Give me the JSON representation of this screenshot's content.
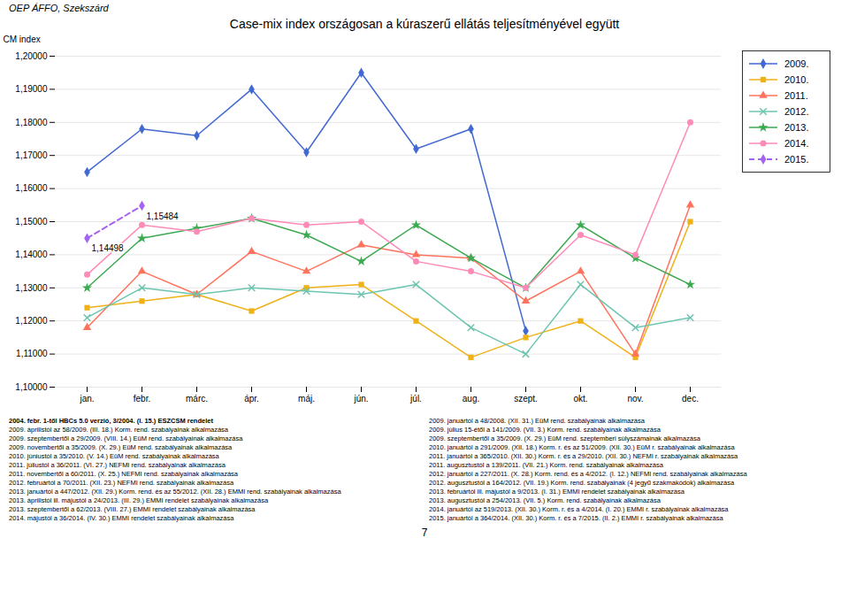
{
  "chart_data": {
    "type": "line",
    "title": "Case-mix index országosan a kúraszerű ellátás teljesítményével együtt",
    "header": "OEP ÁFFO, Szekszárd",
    "y_label": "CM index",
    "categories": [
      "jan.",
      "febr.",
      "márc.",
      "ápr.",
      "máj.",
      "jún.",
      "júl.",
      "aug.",
      "szept.",
      "okt.",
      "nov.",
      "dec."
    ],
    "series": [
      {
        "name": "2009.",
        "marker": "diamond",
        "line_style": "solid",
        "values": [
          1.165,
          1.178,
          1.176,
          1.19,
          1.171,
          1.195,
          1.172,
          1.178,
          1.117,
          null,
          null,
          null
        ]
      },
      {
        "name": "2010.",
        "marker": "square",
        "line_style": "solid",
        "values": [
          1.124,
          1.126,
          1.128,
          1.123,
          1.13,
          1.131,
          1.12,
          1.109,
          1.115,
          1.12,
          1.109,
          1.15
        ]
      },
      {
        "name": "2011.",
        "marker": "triangle",
        "line_style": "solid",
        "values": [
          1.118,
          1.135,
          1.128,
          1.141,
          1.135,
          1.143,
          1.14,
          1.139,
          1.126,
          1.135,
          1.11,
          1.155
        ]
      },
      {
        "name": "2012.",
        "marker": "x",
        "line_style": "solid",
        "values": [
          1.121,
          1.13,
          1.128,
          1.13,
          1.129,
          1.128,
          1.131,
          1.118,
          1.11,
          1.131,
          1.118,
          1.121
        ]
      },
      {
        "name": "2013.",
        "marker": "star",
        "line_style": "solid",
        "values": [
          1.13,
          1.145,
          1.148,
          1.151,
          1.146,
          1.138,
          1.149,
          1.139,
          1.13,
          1.149,
          1.139,
          1.131
        ]
      },
      {
        "name": "2014.",
        "marker": "circle",
        "line_style": "solid",
        "values": [
          1.134,
          1.149,
          1.147,
          1.151,
          1.149,
          1.15,
          1.138,
          1.135,
          1.13,
          1.146,
          1.14,
          1.18
        ]
      },
      {
        "name": "2015.",
        "marker": "diamond",
        "line_style": "dashed",
        "values": [
          1.145,
          1.1548,
          null,
          null,
          null,
          null,
          null,
          null,
          null,
          null,
          null,
          null
        ]
      }
    ],
    "ylim": [
      1.1,
      1.2
    ],
    "yticks": [
      {
        "value": 1.1,
        "label": "1,10000"
      },
      {
        "value": 1.11,
        "label": "1,11000"
      },
      {
        "value": 1.12,
        "label": "1,12000"
      },
      {
        "value": 1.13,
        "label": "1,13000"
      },
      {
        "value": 1.14,
        "label": "1,14000"
      },
      {
        "value": 1.15,
        "label": "1,15000"
      },
      {
        "value": 1.16,
        "label": "1,16000"
      },
      {
        "value": 1.17,
        "label": "1,17000"
      },
      {
        "value": 1.18,
        "label": "1,18000"
      },
      {
        "value": 1.19,
        "label": "1,19000"
      },
      {
        "value": 1.2,
        "label": "1,20000"
      }
    ],
    "grid": true,
    "legend": "right",
    "annotations": [
      {
        "text": "1,15484",
        "x": "febr.",
        "series": "2015."
      },
      {
        "text": "1,14498",
        "x": "jan.",
        "series": "2015."
      }
    ],
    "footnotes_left": [
      "2004. febr. 1-től HBCs 5.0 verzió, 3/2004. (I. 15.) ESZCSM rendelet",
      "2009. áprilistól az 58/2009. (III. 18.) Korm. rend. szabályainak alkalmazása",
      "2009. szeptembertől a 29/2009. (VIII. 14.) EüM rend. szabályainak alkalmazása",
      "2009. novembertől a 35/2009. (X. 29.) EüM rend. szabályainak alkalmazása",
      "2010. júniustól a 35/2010. (V. 14.) EüM rend. szabályainak alkalmazása",
      "2011. júliustól a 36/2011. (VI. 27.) NEFMI rend. szabályainak alkalmazása",
      "2011. novembertől a 60/2011. (X. 25.) NEFMI rend. szabályainak alkalmazása",
      "2012. februártól a 70/2011. (XII. 23.) NEFMI rend. szabályainak alkalmazása",
      "2013. januártól a 447/2012. (XII. 29.) Korm. rend. és az 55/2012. (XII. 28.) EMMI rend. szabályainak alkalmazása",
      "2013. áprilistól ill. májustól a 24/2013. (III. 29.) EMMI rendelet szabályainak alkalmazása",
      "2013. szeptembertől a 62/2013. (VIII. 27.) EMMI rendelet szabályainak alkalmazása",
      "2014. májustól a 36/2014. (IV. 30.) EMMI rendelet szabályainak alkalmazása"
    ],
    "footnotes_right": [
      "2009. januártól a 48/2008. (XII. 31.) EüM rend. szabályainak alkalmazása",
      "2009. július 15-étől a 141/2009. (VII. 3.) Korm. rend. szabályainak alkalmazása",
      "2009. szeptembertől a 35/2009. (X. 29.) EüM rend. szeptemberi súlyszámainak alkalmazása",
      "2010. januártól a 291/2009. (XII. 18.) Korm. r. és az 51/2009. (XII. 30.) EüM r. szabályainak alkalmazása",
      "2011. januártól a 365/2010. (XII. 30.) Korm. r. és a 29/2010. (XII. 30.) NEFMI r. szabályainak alkalmazása",
      "2011. augusztustól a 139/2011. (VII. 21.) Korm. rend. szabályainak alkalmazása",
      "2012. januártól a 227/2011. (X. 28.) Korm. rend. és a 4/2012. (I. 12.) NEFMI rend. szabályainak alkalmazása",
      "2012. augusztustól a 164/2012. (VII. 19.) Korm. rend. szabályainak (4 jegyű szakmakódok) alkalmazása",
      "2013. februártól ill. májustól a 9/2013. (I. 31.) EMMI rendelet szabályainak alkalmazása",
      "2013. augusztustól a 254/2013. (VII. 5.) Korm. rend. szabályainak alkalmazása",
      "2014. januártól az 519/2013. (XII. 30.) Korm. r. és a 4/2014. (I. 20.) EMMI r. szabályainak alkalmazása",
      "2015. januártól a 364/2014. (XII. 30.) Korm. r. és a 7/2015. (II. 2.) EMMI r. szabályainak alkalmazása"
    ],
    "page_number": "7"
  }
}
